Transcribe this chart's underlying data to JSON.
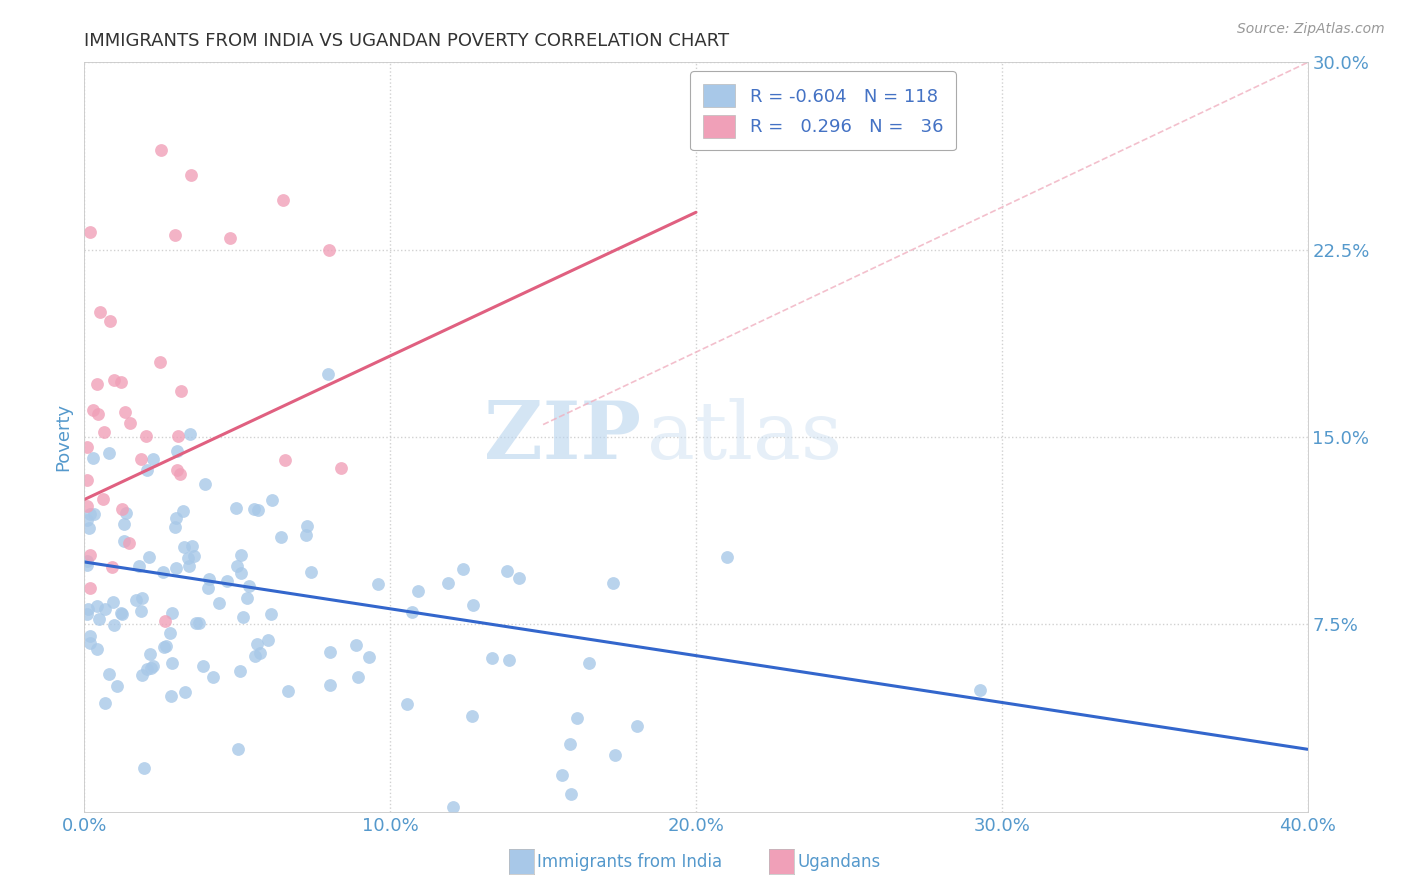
{
  "title": "IMMIGRANTS FROM INDIA VS UGANDAN POVERTY CORRELATION CHART",
  "source": "Source: ZipAtlas.com",
  "xlabel_blue": "Immigrants from India",
  "xlabel_pink": "Ugandans",
  "ylabel": "Poverty",
  "watermark_zip": "ZIP",
  "watermark_atlas": "atlas",
  "blue_color": "#a8c8e8",
  "blue_line_color": "#3366cc",
  "pink_color": "#f0a0b8",
  "pink_line_color": "#e06080",
  "dash_color": "#f0b0c0",
  "axis_label_color": "#5599cc",
  "title_color": "#333333",
  "grid_color": "#cccccc",
  "source_color": "#999999",
  "xlim": [
    0.0,
    0.4
  ],
  "ylim": [
    0.0,
    0.3
  ],
  "xticks": [
    0.0,
    0.1,
    0.2,
    0.3,
    0.4
  ],
  "yticks": [
    0.075,
    0.15,
    0.225,
    0.3
  ],
  "legend_r_color": "#4472c4",
  "legend_label_blue": "R = -0.604   N = 118",
  "legend_label_pink": "R =   0.296   N =   36"
}
